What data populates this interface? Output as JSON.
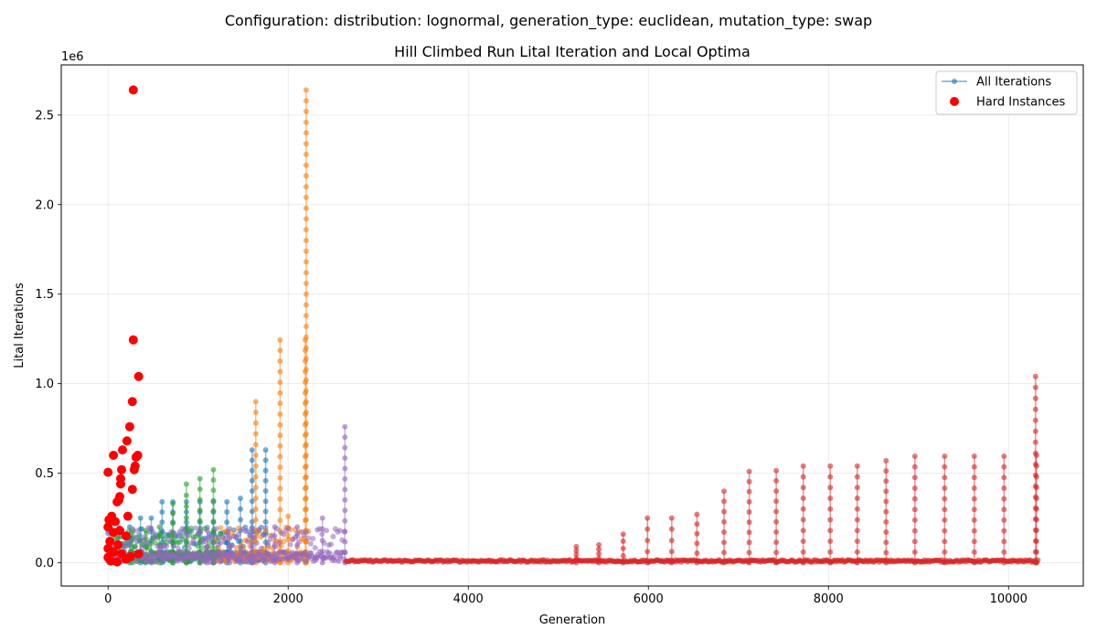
{
  "figure": {
    "suptitle": "Configuration: distribution: lognormal, generation_type: euclidean, mutation_type: swap"
  },
  "chart_data": {
    "type": "scatter",
    "title": "Hill Climbed Run Lital Iteration and Local Optima",
    "xlabel": "Generation",
    "ylabel": "Lital Iterations",
    "y_offset_text": "1e6",
    "xlim": [
      -520,
      10830
    ],
    "ylim": [
      -130000,
      2780000
    ],
    "x_ticks": [
      0,
      2000,
      4000,
      6000,
      8000,
      10000
    ],
    "x_tick_labels": [
      "0",
      "2000",
      "4000",
      "6000",
      "8000",
      "10000"
    ],
    "y_ticks": [
      0,
      500000,
      1000000,
      1500000,
      2000000,
      2500000
    ],
    "y_tick_labels": [
      "0.0",
      "0.5",
      "1.0",
      "1.5",
      "2.0",
      "2.5"
    ],
    "grid": true,
    "legend": {
      "position": "top-right",
      "entries": [
        {
          "label": "All Iterations",
          "marker": "line-dot",
          "color": "#1f77b4"
        },
        {
          "label": "Hard Instances",
          "marker": "dot",
          "color": "#ff0000"
        }
      ]
    },
    "series": [
      {
        "color": "#1f77b4",
        "x_range": [
          0,
          1780
        ],
        "spikes": [
          {
            "x": 1600,
            "y": 630000
          },
          {
            "x": 1750,
            "y": 630000
          },
          {
            "x": 1470,
            "y": 360000
          },
          {
            "x": 1320,
            "y": 340000
          },
          {
            "x": 1170,
            "y": 340000
          },
          {
            "x": 1020,
            "y": 340000
          },
          {
            "x": 870,
            "y": 340000
          },
          {
            "x": 720,
            "y": 340000
          },
          {
            "x": 600,
            "y": 340000
          },
          {
            "x": 480,
            "y": 250000
          },
          {
            "x": 360,
            "y": 250000
          },
          {
            "x": 240,
            "y": 200000
          },
          {
            "x": 120,
            "y": 190000
          }
        ]
      },
      {
        "color": "#ff7f0e",
        "x_range": [
          1200,
          2230
        ],
        "spikes": [
          {
            "x": 1640,
            "y": 900000
          },
          {
            "x": 1910,
            "y": 1245000
          },
          {
            "x": 2200,
            "y": 2640000
          },
          {
            "x": 2190,
            "y": 1245000
          },
          {
            "x": 2000,
            "y": 260000
          }
        ]
      },
      {
        "color": "#2ca02c",
        "x_range": [
          0,
          1250
        ],
        "spikes": [
          {
            "x": 1170,
            "y": 520000
          },
          {
            "x": 1020,
            "y": 470000
          },
          {
            "x": 870,
            "y": 440000
          },
          {
            "x": 720,
            "y": 330000
          },
          {
            "x": 570,
            "y": 200000
          },
          {
            "x": 420,
            "y": 180000
          },
          {
            "x": 270,
            "y": 170000
          }
        ]
      },
      {
        "color": "#9467bd",
        "x_range": [
          0,
          2640
        ],
        "spikes": [
          {
            "x": 2630,
            "y": 760000
          },
          {
            "x": 2380,
            "y": 250000
          },
          {
            "x": 2100,
            "y": 200000
          },
          {
            "x": 1850,
            "y": 200000
          },
          {
            "x": 1600,
            "y": 190000
          },
          {
            "x": 1350,
            "y": 190000
          },
          {
            "x": 1100,
            "y": 180000
          }
        ]
      },
      {
        "color": "#d62728",
        "x_range": [
          2640,
          10330
        ],
        "spikes": [
          {
            "x": 5200,
            "y": 90000
          },
          {
            "x": 5450,
            "y": 100000
          },
          {
            "x": 5720,
            "y": 160000
          },
          {
            "x": 5990,
            "y": 250000
          },
          {
            "x": 6260,
            "y": 250000
          },
          {
            "x": 6540,
            "y": 270000
          },
          {
            "x": 6840,
            "y": 400000
          },
          {
            "x": 7120,
            "y": 510000
          },
          {
            "x": 7420,
            "y": 515000
          },
          {
            "x": 7720,
            "y": 540000
          },
          {
            "x": 8020,
            "y": 540000
          },
          {
            "x": 8320,
            "y": 540000
          },
          {
            "x": 8640,
            "y": 570000
          },
          {
            "x": 8960,
            "y": 595000
          },
          {
            "x": 9290,
            "y": 595000
          },
          {
            "x": 9620,
            "y": 595000
          },
          {
            "x": 9950,
            "y": 595000
          },
          {
            "x": 10300,
            "y": 1040000
          },
          {
            "x": 10310,
            "y": 600000
          }
        ]
      }
    ],
    "hard_instances": {
      "color": "#ff0000",
      "points": [
        {
          "x": 280,
          "y": 2640000
        },
        {
          "x": 280,
          "y": 1245000
        },
        {
          "x": 340,
          "y": 1040000
        },
        {
          "x": 270,
          "y": 900000
        },
        {
          "x": 240,
          "y": 760000
        },
        {
          "x": 210,
          "y": 680000
        },
        {
          "x": 160,
          "y": 630000
        },
        {
          "x": 60,
          "y": 600000
        },
        {
          "x": 330,
          "y": 600000
        },
        {
          "x": 310,
          "y": 590000
        },
        {
          "x": 300,
          "y": 540000
        },
        {
          "x": 290,
          "y": 520000
        },
        {
          "x": 150,
          "y": 520000
        },
        {
          "x": 0,
          "y": 505000
        },
        {
          "x": 140,
          "y": 470000
        },
        {
          "x": 140,
          "y": 440000
        },
        {
          "x": 130,
          "y": 370000
        },
        {
          "x": 120,
          "y": 350000
        },
        {
          "x": 100,
          "y": 340000
        },
        {
          "x": 270,
          "y": 410000
        },
        {
          "x": 220,
          "y": 260000
        },
        {
          "x": 40,
          "y": 260000
        },
        {
          "x": 10,
          "y": 240000
        },
        {
          "x": 80,
          "y": 230000
        },
        {
          "x": 0,
          "y": 200000
        },
        {
          "x": 130,
          "y": 180000
        },
        {
          "x": 60,
          "y": 170000
        },
        {
          "x": 200,
          "y": 150000
        },
        {
          "x": 20,
          "y": 120000
        },
        {
          "x": 110,
          "y": 100000
        },
        {
          "x": 0,
          "y": 80000
        },
        {
          "x": 60,
          "y": 60000
        },
        {
          "x": 150,
          "y": 50000
        },
        {
          "x": 340,
          "y": 50000
        },
        {
          "x": 0,
          "y": 30000
        },
        {
          "x": 30,
          "y": 10000
        },
        {
          "x": 100,
          "y": 5000
        },
        {
          "x": 200,
          "y": 20000
        },
        {
          "x": 250,
          "y": 35000
        }
      ]
    }
  }
}
